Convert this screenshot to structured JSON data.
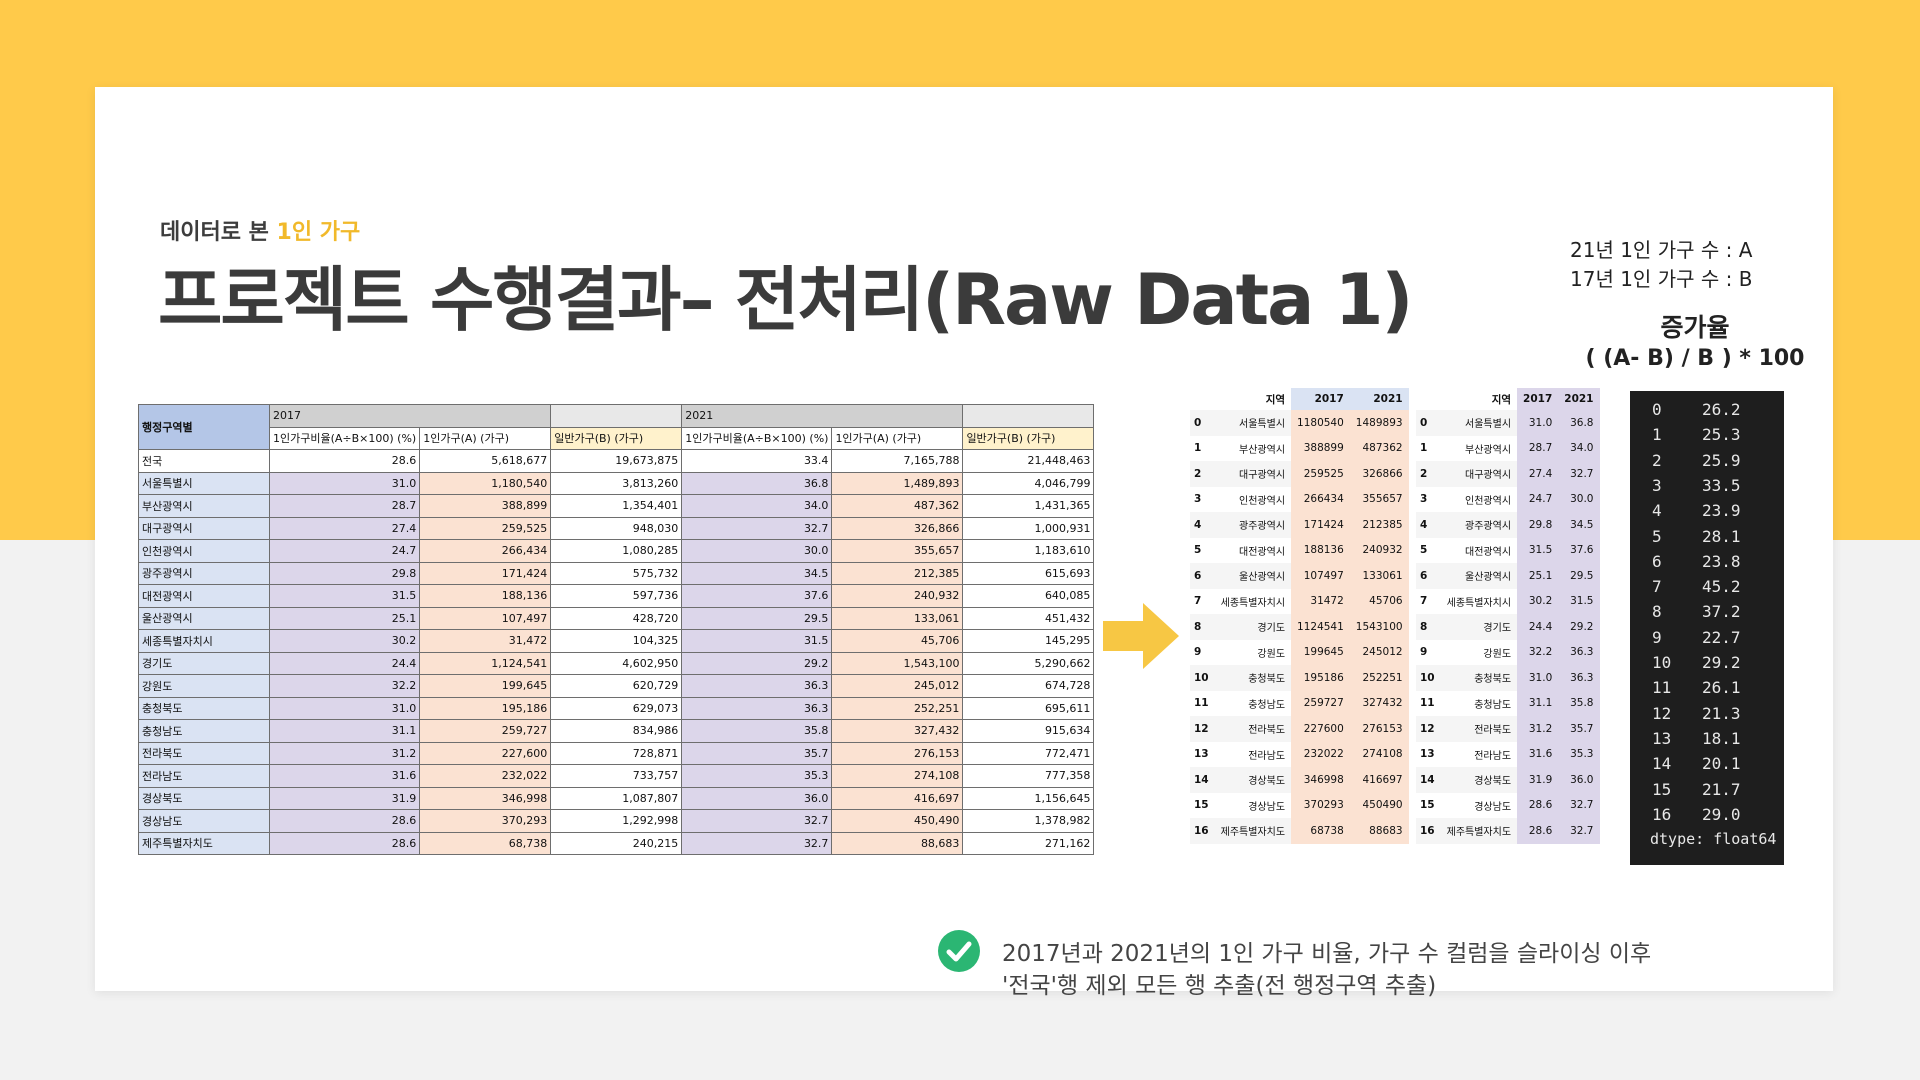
{
  "slide": {
    "subtitle_prefix": "데이터로 본 ",
    "subtitle_highlight": "1인 가구",
    "title": "프로젝트 수행결과– 전처리(Raw Data 1)"
  },
  "formula": {
    "line_a": "21년 1인 가구 수 : A",
    "line_b": "17년 1인 가구 수 : B",
    "heading": "증가율",
    "expression": "( (A- B) / B ) *  100"
  },
  "excel_table": {
    "region_header": "행정구역별",
    "year_2017": "2017",
    "year_2021": "2021",
    "col_ratio": "1인가구비율(A÷B×100) (%)",
    "col_single": "1인가구(A) (가구)",
    "col_general": "일반가구(B) (가구)",
    "rows": [
      {
        "region": "전국",
        "r17": "28.6",
        "a17": "5,618,677",
        "b17": "19,673,875",
        "r21": "33.4",
        "a21": "7,165,788",
        "b21": "21,448,463"
      },
      {
        "region": "서울특별시",
        "r17": "31.0",
        "a17": "1,180,540",
        "b17": "3,813,260",
        "r21": "36.8",
        "a21": "1,489,893",
        "b21": "4,046,799"
      },
      {
        "region": "부산광역시",
        "r17": "28.7",
        "a17": "388,899",
        "b17": "1,354,401",
        "r21": "34.0",
        "a21": "487,362",
        "b21": "1,431,365"
      },
      {
        "region": "대구광역시",
        "r17": "27.4",
        "a17": "259,525",
        "b17": "948,030",
        "r21": "32.7",
        "a21": "326,866",
        "b21": "1,000,931"
      },
      {
        "region": "인천광역시",
        "r17": "24.7",
        "a17": "266,434",
        "b17": "1,080,285",
        "r21": "30.0",
        "a21": "355,657",
        "b21": "1,183,610"
      },
      {
        "region": "광주광역시",
        "r17": "29.8",
        "a17": "171,424",
        "b17": "575,732",
        "r21": "34.5",
        "a21": "212,385",
        "b21": "615,693"
      },
      {
        "region": "대전광역시",
        "r17": "31.5",
        "a17": "188,136",
        "b17": "597,736",
        "r21": "37.6",
        "a21": "240,932",
        "b21": "640,085"
      },
      {
        "region": "울산광역시",
        "r17": "25.1",
        "a17": "107,497",
        "b17": "428,720",
        "r21": "29.5",
        "a21": "133,061",
        "b21": "451,432"
      },
      {
        "region": "세종특별자치시",
        "r17": "30.2",
        "a17": "31,472",
        "b17": "104,325",
        "r21": "31.5",
        "a21": "45,706",
        "b21": "145,295"
      },
      {
        "region": "경기도",
        "r17": "24.4",
        "a17": "1,124,541",
        "b17": "4,602,950",
        "r21": "29.2",
        "a21": "1,543,100",
        "b21": "5,290,662"
      },
      {
        "region": "강원도",
        "r17": "32.2",
        "a17": "199,645",
        "b17": "620,729",
        "r21": "36.3",
        "a21": "245,012",
        "b21": "674,728"
      },
      {
        "region": "충청북도",
        "r17": "31.0",
        "a17": "195,186",
        "b17": "629,073",
        "r21": "36.3",
        "a21": "252,251",
        "b21": "695,611"
      },
      {
        "region": "충청남도",
        "r17": "31.1",
        "a17": "259,727",
        "b17": "834,986",
        "r21": "35.8",
        "a21": "327,432",
        "b21": "915,634"
      },
      {
        "region": "전라북도",
        "r17": "31.2",
        "a17": "227,600",
        "b17": "728,871",
        "r21": "35.7",
        "a21": "276,153",
        "b21": "772,471"
      },
      {
        "region": "전라남도",
        "r17": "31.6",
        "a17": "232,022",
        "b17": "733,757",
        "r21": "35.3",
        "a21": "274,108",
        "b21": "777,358"
      },
      {
        "region": "경상북도",
        "r17": "31.9",
        "a17": "346,998",
        "b17": "1,087,807",
        "r21": "36.0",
        "a21": "416,697",
        "b21": "1,156,645"
      },
      {
        "region": "경상남도",
        "r17": "28.6",
        "a17": "370,293",
        "b17": "1,292,998",
        "r21": "32.7",
        "a21": "450,490",
        "b21": "1,378,982"
      },
      {
        "region": "제주특별자치도",
        "r17": "28.6",
        "a17": "68,738",
        "b17": "240,215",
        "r21": "32.7",
        "a21": "88,683",
        "b21": "271,162"
      }
    ]
  },
  "df_counts": {
    "headers": [
      "지역",
      "2017",
      "2021"
    ],
    "rows": [
      {
        "i": "0",
        "region": "서울특별시",
        "v17": "1180540",
        "v21": "1489893"
      },
      {
        "i": "1",
        "region": "부산광역시",
        "v17": "388899",
        "v21": "487362"
      },
      {
        "i": "2",
        "region": "대구광역시",
        "v17": "259525",
        "v21": "326866"
      },
      {
        "i": "3",
        "region": "인천광역시",
        "v17": "266434",
        "v21": "355657"
      },
      {
        "i": "4",
        "region": "광주광역시",
        "v17": "171424",
        "v21": "212385"
      },
      {
        "i": "5",
        "region": "대전광역시",
        "v17": "188136",
        "v21": "240932"
      },
      {
        "i": "6",
        "region": "울산광역시",
        "v17": "107497",
        "v21": "133061"
      },
      {
        "i": "7",
        "region": "세종특별자치시",
        "v17": "31472",
        "v21": "45706"
      },
      {
        "i": "8",
        "region": "경기도",
        "v17": "1124541",
        "v21": "1543100"
      },
      {
        "i": "9",
        "region": "강원도",
        "v17": "199645",
        "v21": "245012"
      },
      {
        "i": "10",
        "region": "충청북도",
        "v17": "195186",
        "v21": "252251"
      },
      {
        "i": "11",
        "region": "충청남도",
        "v17": "259727",
        "v21": "327432"
      },
      {
        "i": "12",
        "region": "전라북도",
        "v17": "227600",
        "v21": "276153"
      },
      {
        "i": "13",
        "region": "전라남도",
        "v17": "232022",
        "v21": "274108"
      },
      {
        "i": "14",
        "region": "경상북도",
        "v17": "346998",
        "v21": "416697"
      },
      {
        "i": "15",
        "region": "경상남도",
        "v17": "370293",
        "v21": "450490"
      },
      {
        "i": "16",
        "region": "제주특별자치도",
        "v17": "68738",
        "v21": "88683"
      }
    ]
  },
  "df_ratios": {
    "headers": [
      "지역",
      "2017",
      "2021"
    ],
    "rows": [
      {
        "i": "0",
        "region": "서울특별시",
        "v17": "31.0",
        "v21": "36.8"
      },
      {
        "i": "1",
        "region": "부산광역시",
        "v17": "28.7",
        "v21": "34.0"
      },
      {
        "i": "2",
        "region": "대구광역시",
        "v17": "27.4",
        "v21": "32.7"
      },
      {
        "i": "3",
        "region": "인천광역시",
        "v17": "24.7",
        "v21": "30.0"
      },
      {
        "i": "4",
        "region": "광주광역시",
        "v17": "29.8",
        "v21": "34.5"
      },
      {
        "i": "5",
        "region": "대전광역시",
        "v17": "31.5",
        "v21": "37.6"
      },
      {
        "i": "6",
        "region": "울산광역시",
        "v17": "25.1",
        "v21": "29.5"
      },
      {
        "i": "7",
        "region": "세종특별자치시",
        "v17": "30.2",
        "v21": "31.5"
      },
      {
        "i": "8",
        "region": "경기도",
        "v17": "24.4",
        "v21": "29.2"
      },
      {
        "i": "9",
        "region": "강원도",
        "v17": "32.2",
        "v21": "36.3"
      },
      {
        "i": "10",
        "region": "충청북도",
        "v17": "31.0",
        "v21": "36.3"
      },
      {
        "i": "11",
        "region": "충청남도",
        "v17": "31.1",
        "v21": "35.8"
      },
      {
        "i": "12",
        "region": "전라북도",
        "v17": "31.2",
        "v21": "35.7"
      },
      {
        "i": "13",
        "region": "전라남도",
        "v17": "31.6",
        "v21": "35.3"
      },
      {
        "i": "14",
        "region": "경상북도",
        "v17": "31.9",
        "v21": "36.0"
      },
      {
        "i": "15",
        "region": "경상남도",
        "v17": "28.6",
        "v21": "32.7"
      },
      {
        "i": "16",
        "region": "제주특별자치도",
        "v17": "28.6",
        "v21": "32.7"
      }
    ]
  },
  "growth_series": {
    "rows": [
      {
        "i": "0",
        "v": "26.2"
      },
      {
        "i": "1",
        "v": "25.3"
      },
      {
        "i": "2",
        "v": "25.9"
      },
      {
        "i": "3",
        "v": "33.5"
      },
      {
        "i": "4",
        "v": "23.9"
      },
      {
        "i": "5",
        "v": "28.1"
      },
      {
        "i": "6",
        "v": "23.8"
      },
      {
        "i": "7",
        "v": "45.2"
      },
      {
        "i": "8",
        "v": "37.2"
      },
      {
        "i": "9",
        "v": "22.7"
      },
      {
        "i": "10",
        "v": "29.2"
      },
      {
        "i": "11",
        "v": "26.1"
      },
      {
        "i": "12",
        "v": "21.3"
      },
      {
        "i": "13",
        "v": "18.1"
      },
      {
        "i": "14",
        "v": "20.1"
      },
      {
        "i": "15",
        "v": "21.7"
      },
      {
        "i": "16",
        "v": "29.0"
      }
    ],
    "dtype": "dtype: float64"
  },
  "note": {
    "line1": "2017년과 2021년의 1인 가구 비율, 가구 수 컬럼을 슬라이싱 이후",
    "line2": "'전국'행 제외 모든 행 추출(전 행정구역 추출)"
  },
  "colors": {
    "background_yellow": "#ffca4a",
    "accent_yellow": "#f1b92a",
    "check_green": "#2bb673",
    "arrow_yellow": "#f7c744"
  }
}
